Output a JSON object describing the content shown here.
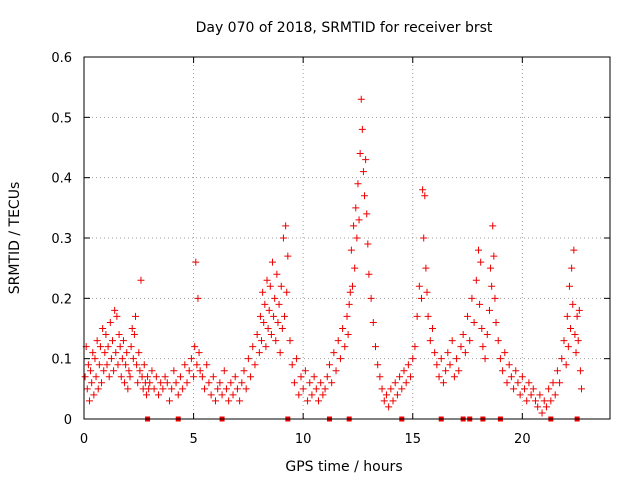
{
  "chart_data": {
    "type": "scatter",
    "title": "Day 070 of 2018, SRMTID for receiver brst",
    "xlabel": "GPS time / hours",
    "ylabel": "SRMTID / TECUs",
    "xlim": [
      0,
      24
    ],
    "ylim": [
      0,
      0.6
    ],
    "xticks": [
      0,
      5,
      10,
      15,
      20
    ],
    "xtick_labels": [
      "0",
      "5",
      "10",
      "15",
      "20"
    ],
    "yticks": [
      0,
      0.1,
      0.2,
      0.3,
      0.4,
      0.5,
      0.6
    ],
    "ytick_labels": [
      "0",
      "0.1",
      "0.2",
      "0.3",
      "0.4",
      "0.5",
      "0.6"
    ],
    "grid": true,
    "marker": "plus",
    "color": "#ee0000",
    "series": [
      {
        "name": "SRMTID",
        "x": [
          0.05,
          0.1,
          0.15,
          0.2,
          0.25,
          0.3,
          0.35,
          0.4,
          0.45,
          0.5,
          0.55,
          0.6,
          0.65,
          0.7,
          0.75,
          0.8,
          0.85,
          0.9,
          0.95,
          1.0,
          1.05,
          1.1,
          1.15,
          1.2,
          1.25,
          1.3,
          1.35,
          1.4,
          1.45,
          1.5,
          1.55,
          1.6,
          1.65,
          1.7,
          1.75,
          1.8,
          1.85,
          1.9,
          1.95,
          2.0,
          2.05,
          2.1,
          2.15,
          2.2,
          2.25,
          2.3,
          2.35,
          2.4,
          2.45,
          2.5,
          2.55,
          2.6,
          2.65,
          2.7,
          2.75,
          2.8,
          2.85,
          2.9,
          2.95,
          3.0,
          3.1,
          3.2,
          3.3,
          3.4,
          3.5,
          3.6,
          3.7,
          3.8,
          3.9,
          4.0,
          4.1,
          4.2,
          4.3,
          4.4,
          4.5,
          4.6,
          4.7,
          4.8,
          4.9,
          5.0,
          5.05,
          5.1,
          5.15,
          5.2,
          5.25,
          5.3,
          5.4,
          5.5,
          5.6,
          5.7,
          5.8,
          5.9,
          6.0,
          6.1,
          6.2,
          6.3,
          6.4,
          6.5,
          6.6,
          6.7,
          6.8,
          6.9,
          7.0,
          7.1,
          7.2,
          7.3,
          7.4,
          7.5,
          7.6,
          7.7,
          7.8,
          7.9,
          8.0,
          8.05,
          8.1,
          8.15,
          8.2,
          8.25,
          8.3,
          8.35,
          8.4,
          8.45,
          8.5,
          8.55,
          8.6,
          8.65,
          8.7,
          8.75,
          8.8,
          8.85,
          8.9,
          8.95,
          9.0,
          9.05,
          9.1,
          9.15,
          9.2,
          9.25,
          9.3,
          9.4,
          9.5,
          9.6,
          9.7,
          9.8,
          9.9,
          10.0,
          10.1,
          10.2,
          10.3,
          10.4,
          10.5,
          10.6,
          10.7,
          10.8,
          10.9,
          11.0,
          11.1,
          11.2,
          11.3,
          11.4,
          11.5,
          11.6,
          11.7,
          11.8,
          11.9,
          12.0,
          12.05,
          12.1,
          12.15,
          12.2,
          12.25,
          12.3,
          12.35,
          12.4,
          12.45,
          12.5,
          12.55,
          12.6,
          12.65,
          12.7,
          12.75,
          12.8,
          12.85,
          12.9,
          12.95,
          13.0,
          13.1,
          13.2,
          13.3,
          13.4,
          13.5,
          13.6,
          13.7,
          13.8,
          13.9,
          14.0,
          14.1,
          14.2,
          14.3,
          14.4,
          14.5,
          14.6,
          14.7,
          14.8,
          14.9,
          15.0,
          15.1,
          15.2,
          15.3,
          15.4,
          15.45,
          15.5,
          15.55,
          15.6,
          15.65,
          15.7,
          15.8,
          15.9,
          16.0,
          16.1,
          16.2,
          16.3,
          16.4,
          16.5,
          16.6,
          16.7,
          16.8,
          16.9,
          17.0,
          17.1,
          17.2,
          17.3,
          17.4,
          17.5,
          17.6,
          17.7,
          17.8,
          17.9,
          18.0,
          18.05,
          18.1,
          18.15,
          18.2,
          18.3,
          18.4,
          18.5,
          18.55,
          18.6,
          18.65,
          18.7,
          18.75,
          18.8,
          18.9,
          19.0,
          19.1,
          19.2,
          19.3,
          19.4,
          19.5,
          19.6,
          19.7,
          19.8,
          19.9,
          20.0,
          20.1,
          20.2,
          20.3,
          20.4,
          20.5,
          20.6,
          20.7,
          20.8,
          20.9,
          21.0,
          21.1,
          21.2,
          21.3,
          21.4,
          21.5,
          21.6,
          21.7,
          21.8,
          21.9,
          22.0,
          22.05,
          22.1,
          22.15,
          22.2,
          22.25,
          22.3,
          22.35,
          22.4,
          22.45,
          22.5,
          22.55,
          22.6,
          22.65,
          22.7
        ],
        "y": [
          0.07,
          0.12,
          0.05,
          0.09,
          0.03,
          0.08,
          0.06,
          0.11,
          0.04,
          0.1,
          0.07,
          0.13,
          0.05,
          0.09,
          0.12,
          0.06,
          0.15,
          0.08,
          0.11,
          0.14,
          0.09,
          0.12,
          0.07,
          0.16,
          0.1,
          0.13,
          0.08,
          0.18,
          0.11,
          0.17,
          0.09,
          0.14,
          0.12,
          0.07,
          0.1,
          0.13,
          0.06,
          0.09,
          0.11,
          0.05,
          0.08,
          0.07,
          0.12,
          0.15,
          0.1,
          0.14,
          0.17,
          0.09,
          0.06,
          0.11,
          0.08,
          0.23,
          0.07,
          0.05,
          0.09,
          0.06,
          0.04,
          0.07,
          0.05,
          0.06,
          0.08,
          0.05,
          0.07,
          0.04,
          0.06,
          0.05,
          0.07,
          0.06,
          0.03,
          0.05,
          0.08,
          0.06,
          0.04,
          0.07,
          0.05,
          0.09,
          0.06,
          0.08,
          0.1,
          0.07,
          0.12,
          0.26,
          0.09,
          0.2,
          0.11,
          0.08,
          0.07,
          0.05,
          0.09,
          0.06,
          0.04,
          0.07,
          0.03,
          0.05,
          0.06,
          0.04,
          0.08,
          0.05,
          0.03,
          0.06,
          0.04,
          0.07,
          0.05,
          0.03,
          0.06,
          0.08,
          0.05,
          0.1,
          0.07,
          0.12,
          0.09,
          0.14,
          0.11,
          0.17,
          0.13,
          0.21,
          0.16,
          0.19,
          0.12,
          0.23,
          0.15,
          0.18,
          0.22,
          0.14,
          0.26,
          0.17,
          0.2,
          0.13,
          0.24,
          0.16,
          0.19,
          0.11,
          0.22,
          0.15,
          0.3,
          0.17,
          0.32,
          0.21,
          0.27,
          0.13,
          0.09,
          0.06,
          0.1,
          0.04,
          0.07,
          0.05,
          0.08,
          0.03,
          0.06,
          0.04,
          0.07,
          0.05,
          0.03,
          0.06,
          0.04,
          0.05,
          0.07,
          0.09,
          0.06,
          0.11,
          0.08,
          0.13,
          0.1,
          0.15,
          0.12,
          0.17,
          0.14,
          0.19,
          0.21,
          0.28,
          0.22,
          0.32,
          0.25,
          0.35,
          0.3,
          0.39,
          0.33,
          0.44,
          0.53,
          0.48,
          0.41,
          0.37,
          0.43,
          0.34,
          0.29,
          0.24,
          0.2,
          0.16,
          0.12,
          0.09,
          0.07,
          0.05,
          0.03,
          0.04,
          0.02,
          0.05,
          0.03,
          0.06,
          0.04,
          0.07,
          0.05,
          0.08,
          0.06,
          0.09,
          0.07,
          0.1,
          0.12,
          0.17,
          0.22,
          0.2,
          0.38,
          0.3,
          0.37,
          0.25,
          0.21,
          0.17,
          0.13,
          0.15,
          0.11,
          0.09,
          0.07,
          0.1,
          0.06,
          0.08,
          0.11,
          0.09,
          0.13,
          0.07,
          0.1,
          0.08,
          0.12,
          0.14,
          0.11,
          0.17,
          0.13,
          0.2,
          0.16,
          0.23,
          0.28,
          0.19,
          0.26,
          0.15,
          0.12,
          0.1,
          0.14,
          0.18,
          0.25,
          0.22,
          0.32,
          0.27,
          0.2,
          0.16,
          0.13,
          0.1,
          0.08,
          0.11,
          0.06,
          0.09,
          0.07,
          0.05,
          0.08,
          0.06,
          0.04,
          0.07,
          0.05,
          0.03,
          0.06,
          0.04,
          0.05,
          0.03,
          0.02,
          0.04,
          0.01,
          0.03,
          0.02,
          0.05,
          0.03,
          0.06,
          0.04,
          0.08,
          0.06,
          0.1,
          0.13,
          0.09,
          0.17,
          0.12,
          0.22,
          0.15,
          0.25,
          0.19,
          0.28,
          0.14,
          0.11,
          0.17,
          0.13,
          0.18,
          0.08,
          0.05
        ]
      }
    ],
    "gap_markers_x": [
      2.9,
      4.3,
      6.3,
      9.3,
      11.2,
      12.1,
      14.5,
      16.3,
      17.3,
      17.6,
      18.2,
      19.0,
      21.3,
      22.5
    ]
  }
}
